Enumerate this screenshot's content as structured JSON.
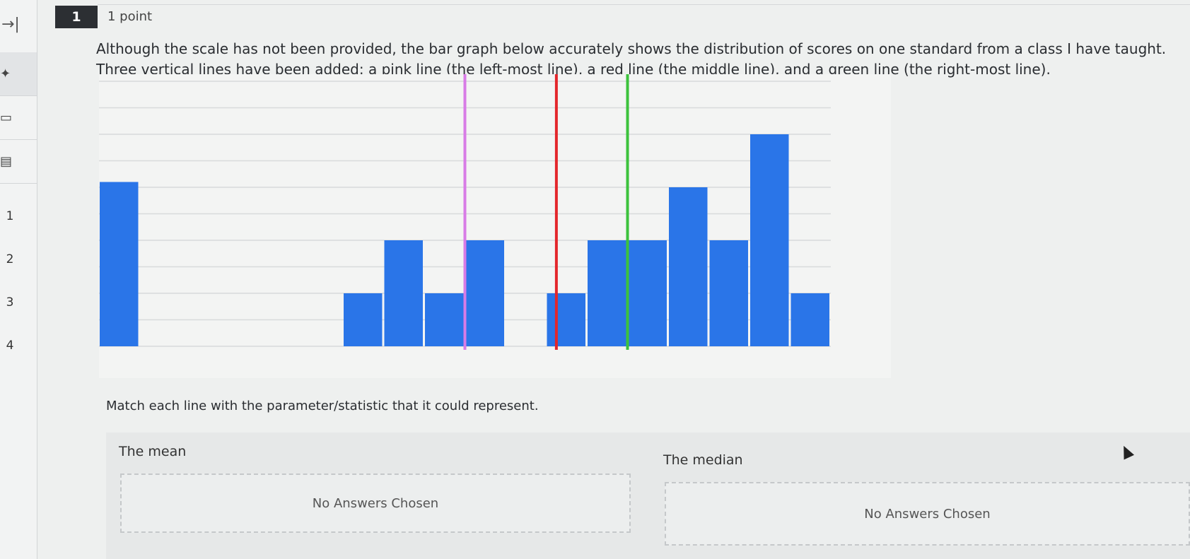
{
  "sidebar": {
    "expand_icon": "→|",
    "icons": [
      "pin-icon",
      "bookmark-icon",
      "list-icon"
    ],
    "items": [
      "1",
      "2",
      "3",
      "4"
    ]
  },
  "question": {
    "number": "1",
    "points": "1 point",
    "prompt": "Although the scale has not been provided, the bar graph below accurately shows the distribution of scores on one standard from a class I have taught.  Three vertical lines have been added: a pink line (the left-most line), a red line (the middle line), and a green line (the right-most line).",
    "match_prompt": "Match each line with the parameter/statistic that it could represent."
  },
  "chart_data": {
    "type": "bar",
    "title": "",
    "xlabel": "",
    "ylabel": "",
    "ylim": [
      0,
      5
    ],
    "grid": true,
    "bars": [
      {
        "x": 0,
        "value": 3.1
      },
      {
        "x": 6,
        "value": 1.0
      },
      {
        "x": 7,
        "value": 2.0
      },
      {
        "x": 8,
        "value": 1.0
      },
      {
        "x": 9,
        "value": 2.0
      },
      {
        "x": 11,
        "value": 1.0
      },
      {
        "x": 12,
        "value": 2.0
      },
      {
        "x": 13,
        "value": 2.0
      },
      {
        "x": 14,
        "value": 3.0
      },
      {
        "x": 15,
        "value": 2.0
      },
      {
        "x": 16,
        "value": 4.0
      },
      {
        "x": 17,
        "value": 1.0
      }
    ],
    "vertical_lines": [
      {
        "color": "#d87ce6",
        "x": 9.0
      },
      {
        "color": "#e3262b",
        "x": 11.25
      },
      {
        "color": "#3cc23c",
        "x": 13.0
      }
    ],
    "bar_color": "#2a75e8"
  },
  "matching": [
    {
      "label": "The mean",
      "value": "No Answers Chosen"
    },
    {
      "label": "The median",
      "value": "No Answers Chosen"
    }
  ]
}
